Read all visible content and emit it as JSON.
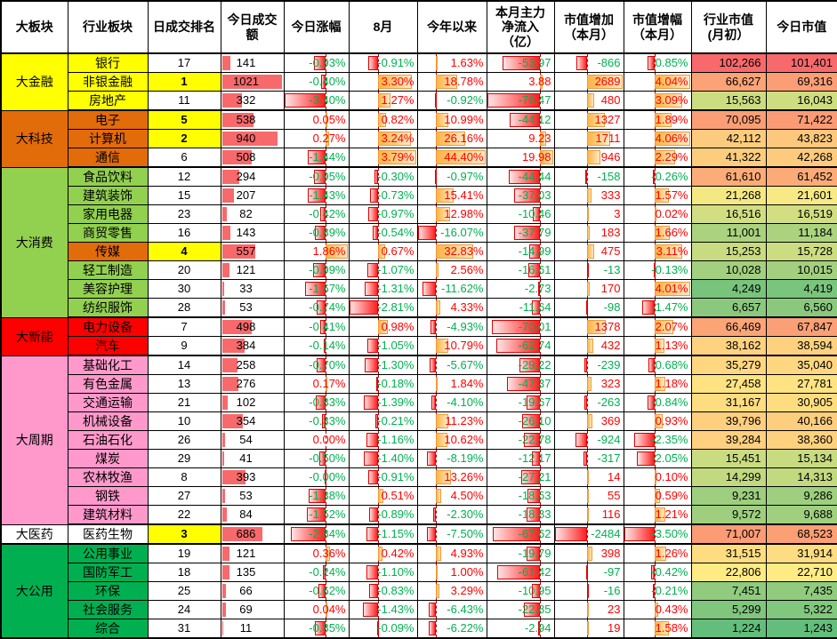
{
  "colors": {
    "positive_text": "#FF0000",
    "negative_text": "#00B050",
    "volume_bar": "#F8696B",
    "positive_bar_dark": "#FFB445",
    "positive_bar_light": "#FFEAC6",
    "negative_bar_dark": "#FF2020",
    "negative_bar_light": "#FFE4E4",
    "scale_low": "#63BE7B",
    "scale_mid": "#FFEB84",
    "scale_high": "#F8696B",
    "rank_highlight": "#FFFF00"
  },
  "chart_data": {
    "type": "table",
    "columns": [
      {
        "key": "group",
        "label": "大板块"
      },
      {
        "key": "industry",
        "label": "行业板块"
      },
      {
        "key": "rank",
        "label": "日成交排名"
      },
      {
        "key": "volume",
        "label": "今日成交\n额"
      },
      {
        "key": "today",
        "label": "今日涨幅"
      },
      {
        "key": "aug",
        "label": "8月"
      },
      {
        "key": "ytd",
        "label": "今年以来"
      },
      {
        "key": "inflow",
        "label": "本月主力\n净流入\n（亿）"
      },
      {
        "key": "mv_add",
        "label": "市值增加\n（本月）"
      },
      {
        "key": "mv_pct",
        "label": "市值增幅\n（本月）"
      },
      {
        "key": "mv_start",
        "label": "行业市值\n(月初）"
      },
      {
        "key": "mv_today",
        "label": "今日市值"
      }
    ],
    "groups": [
      {
        "name": "大金融",
        "color": "#FFFF00",
        "rows": [
          {
            "industry": "银行",
            "rank": "17",
            "rank_top": false,
            "volume": "141",
            "today": "-0.93%",
            "aug": "-0.91%",
            "ytd": "1.63%",
            "inflow": "-53.97",
            "mv_add": "-866",
            "mv_pct": "-0.85%",
            "mv_start": "102,266",
            "mv_today": "101,401"
          },
          {
            "industry": "非银金融",
            "rank": "1",
            "rank_top": true,
            "volume": "1021",
            "today": "-0.40%",
            "aug": "3.30%",
            "ytd": "18.78%",
            "inflow": "3.88",
            "mv_add": "2689",
            "mv_pct": "4.04%",
            "mv_start": "66,627",
            "mv_today": "69,316"
          },
          {
            "industry": "房地产",
            "rank": "11",
            "rank_top": false,
            "volume": "332",
            "today": "-3.40%",
            "aug": "1.27%",
            "ytd": "-0.92%",
            "inflow": "-76.47",
            "mv_add": "480",
            "mv_pct": "3.09%",
            "mv_start": "15,563",
            "mv_today": "16,043"
          }
        ]
      },
      {
        "name": "大科技",
        "color": "#E26B0A",
        "rows": [
          {
            "industry": "电子",
            "rank": "5",
            "rank_top": true,
            "volume": "538",
            "today": "0.05%",
            "aug": "0.82%",
            "ytd": "10.99%",
            "inflow": "-44.12",
            "mv_add": "1327",
            "mv_pct": "1.89%",
            "mv_start": "70,095",
            "mv_today": "71,422"
          },
          {
            "industry": "计算机",
            "rank": "2",
            "rank_top": true,
            "volume": "940",
            "today": "0.27%",
            "aug": "3.24%",
            "ytd": "26.16%",
            "inflow": "9.23",
            "mv_add": "1711",
            "mv_pct": "4.06%",
            "mv_start": "42,112",
            "mv_today": "43,823"
          },
          {
            "industry": "通信",
            "rank": "6",
            "rank_top": false,
            "volume": "508",
            "today": "-1.44%",
            "aug": "3.79%",
            "ytd": "44.40%",
            "inflow": "19.98",
            "mv_add": "946",
            "mv_pct": "2.29%",
            "mv_start": "41,322",
            "mv_today": "42,268"
          }
        ]
      },
      {
        "name": "大消费",
        "color": "#92D050",
        "rows": [
          {
            "industry": "食品饮料",
            "rank": "12",
            "rank_top": false,
            "volume": "294",
            "today": "-0.95%",
            "aug": "-0.30%",
            "ytd": "-0.97%",
            "inflow": "-44.44",
            "mv_add": "-158",
            "mv_pct": "-0.26%",
            "mv_start": "61,610",
            "mv_today": "61,452"
          },
          {
            "industry": "建筑装饰",
            "rank": "15",
            "rank_top": false,
            "volume": "207",
            "today": "-1.43%",
            "aug": "-0.73%",
            "ytd": "15.41%",
            "inflow": "-37.03",
            "mv_add": "333",
            "mv_pct": "1.57%",
            "mv_start": "21,268",
            "mv_today": "21,601"
          },
          {
            "industry": "家用电器",
            "rank": "23",
            "rank_top": false,
            "volume": "82",
            "today": "-0.42%",
            "aug": "-0.97%",
            "ytd": "12.98%",
            "inflow": "-10.46",
            "mv_add": "3",
            "mv_pct": "0.02%",
            "mv_start": "16,516",
            "mv_today": "16,519"
          },
          {
            "industry": "商贸零售",
            "rank": "16",
            "rank_top": false,
            "volume": "143",
            "today": "-0.89%",
            "aug": "-0.54%",
            "ytd": "-16.07%",
            "inflow": "-37.79",
            "mv_add": "183",
            "mv_pct": "1.66%",
            "mv_start": "11,001",
            "mv_today": "11,184"
          },
          {
            "industry": "传媒",
            "row_color": "#E26B0A",
            "rank": "4",
            "rank_top": true,
            "volume": "557",
            "today": "1.86%",
            "aug": "0.67%",
            "ytd": "32.83%",
            "inflow": "-14.99",
            "mv_add": "475",
            "mv_pct": "3.11%",
            "mv_start": "15,253",
            "mv_today": "15,728"
          },
          {
            "industry": "轻工制造",
            "rank": "20",
            "rank_top": false,
            "volume": "121",
            "today": "-0.99%",
            "aug": "-1.07%",
            "ytd": "2.56%",
            "inflow": "-16.61",
            "mv_add": "-13",
            "mv_pct": "-0.13%",
            "mv_start": "10,028",
            "mv_today": "10,015"
          },
          {
            "industry": "美容护理",
            "rank": "30",
            "rank_top": false,
            "volume": "33",
            "today": "-1.67%",
            "aug": "-1.31%",
            "ytd": "-11.62%",
            "inflow": "-2.73",
            "mv_add": "170",
            "mv_pct": "4.01%",
            "mv_start": "4,249",
            "mv_today": "4,419"
          },
          {
            "industry": "纺织服饰",
            "rank": "28",
            "rank_top": false,
            "volume": "53",
            "today": "-0.74%",
            "aug": "-2.81%",
            "ytd": "4.33%",
            "inflow": "-11.64",
            "mv_add": "-98",
            "mv_pct": "-1.47%",
            "mv_start": "6,657",
            "mv_today": "6,560"
          }
        ]
      },
      {
        "name": "大新能",
        "color": "#FF0000",
        "rows": [
          {
            "industry": "电力设备",
            "rank": "7",
            "rank_top": false,
            "volume": "498",
            "today": "-0.41%",
            "aug": "0.98%",
            "ytd": "-4.93%",
            "inflow": "-70.01",
            "mv_add": "1378",
            "mv_pct": "2.07%",
            "mv_start": "66,469",
            "mv_today": "67,847"
          },
          {
            "industry": "汽车",
            "rank": "9",
            "rank_top": false,
            "volume": "384",
            "today": "-0.14%",
            "aug": "-1.05%",
            "ytd": "10.79%",
            "inflow": "-62.74",
            "mv_add": "432",
            "mv_pct": "1.13%",
            "mv_start": "38,162",
            "mv_today": "38,594"
          }
        ]
      },
      {
        "name": "大周期",
        "color": "#FF99CC",
        "rows": [
          {
            "industry": "基础化工",
            "rank": "14",
            "rank_top": false,
            "volume": "258",
            "today": "-0.70%",
            "aug": "-1.30%",
            "ytd": "-5.67%",
            "inflow": "-29.22",
            "mv_add": "-239",
            "mv_pct": "-0.68%",
            "mv_start": "35,279",
            "mv_today": "35,040"
          },
          {
            "industry": "有色金属",
            "rank": "13",
            "rank_top": false,
            "volume": "276",
            "today": "0.17%",
            "aug": "-0.18%",
            "ytd": "1.84%",
            "inflow": "-47.37",
            "mv_add": "323",
            "mv_pct": "1.18%",
            "mv_start": "27,458",
            "mv_today": "27,781"
          },
          {
            "industry": "交通运输",
            "rank": "21",
            "rank_top": false,
            "volume": "102",
            "today": "-0.83%",
            "aug": "-1.39%",
            "ytd": "-4.10%",
            "inflow": "-19.67",
            "mv_add": "-263",
            "mv_pct": "-0.84%",
            "mv_start": "31,167",
            "mv_today": "30,905"
          },
          {
            "industry": "机械设备",
            "rank": "10",
            "rank_top": false,
            "volume": "354",
            "today": "-0.33%",
            "aug": "-0.21%",
            "ytd": "11.23%",
            "inflow": "-26.10",
            "mv_add": "369",
            "mv_pct": "0.93%",
            "mv_start": "39,796",
            "mv_today": "40,166"
          },
          {
            "industry": "石油石化",
            "rank": "26",
            "rank_top": false,
            "volume": "54",
            "today": "0.00%",
            "aug": "-1.16%",
            "ytd": "10.62%",
            "inflow": "-22.78",
            "mv_add": "-924",
            "mv_pct": "-2.35%",
            "mv_start": "39,284",
            "mv_today": "38,360"
          },
          {
            "industry": "煤炭",
            "rank": "29",
            "rank_top": false,
            "volume": "41",
            "today": "-0.50%",
            "aug": "-1.40%",
            "ytd": "-8.19%",
            "inflow": "-12.17",
            "mv_add": "-317",
            "mv_pct": "-2.05%",
            "mv_start": "15,451",
            "mv_today": "15,134"
          },
          {
            "industry": "农林牧渔",
            "rank": "8",
            "rank_top": false,
            "volume": "393",
            "today": "-0.00%",
            "aug": "-0.91%",
            "ytd": "13.26%",
            "inflow": "-27.21",
            "mv_add": "14",
            "mv_pct": "0.10%",
            "mv_start": "14,299",
            "mv_today": "14,313"
          },
          {
            "industry": "钢铁",
            "rank": "27",
            "rank_top": false,
            "volume": "53",
            "today": "-1.38%",
            "aug": "0.51%",
            "ytd": "4.50%",
            "inflow": "-18.53",
            "mv_add": "55",
            "mv_pct": "0.59%",
            "mv_start": "9,231",
            "mv_today": "9,286"
          },
          {
            "industry": "建筑材料",
            "rank": "22",
            "rank_top": false,
            "volume": "84",
            "today": "-1.52%",
            "aug": "-0.89%",
            "ytd": "-2.30%",
            "inflow": "-18.83",
            "mv_add": "116",
            "mv_pct": "1.21%",
            "mv_start": "9,572",
            "mv_today": "9,688"
          }
        ]
      },
      {
        "name": "大医药",
        "color": "#FFFFFF",
        "rows": [
          {
            "industry": "医药生物",
            "rank": "3",
            "rank_top": true,
            "volume": "686",
            "today": "-2.84%",
            "aug": "-1.15%",
            "ytd": "-7.50%",
            "inflow": "-67.62",
            "mv_add": "-2484",
            "mv_pct": "-3.50%",
            "mv_start": "71,007",
            "mv_today": "68,523"
          }
        ]
      },
      {
        "name": "大公用",
        "color": "#00B050",
        "rows": [
          {
            "industry": "公用事业",
            "rank": "19",
            "rank_top": false,
            "volume": "121",
            "today": "0.36%",
            "aug": "0.42%",
            "ytd": "4.93%",
            "inflow": "-19.79",
            "mv_add": "398",
            "mv_pct": "1.26%",
            "mv_start": "31,515",
            "mv_today": "31,914"
          },
          {
            "industry": "国防军工",
            "rank": "18",
            "rank_top": false,
            "volume": "135",
            "today": "-0.24%",
            "aug": "-1.10%",
            "ytd": "1.00%",
            "inflow": "-61.42",
            "mv_add": "-97",
            "mv_pct": "-0.42%",
            "mv_start": "22,806",
            "mv_today": "22,710"
          },
          {
            "industry": "环保",
            "rank": "25",
            "rank_top": false,
            "volume": "66",
            "today": "-0.62%",
            "aug": "-0.83%",
            "ytd": "3.29%",
            "inflow": "-10.95",
            "mv_add": "-16",
            "mv_pct": "-0.21%",
            "mv_start": "7,451",
            "mv_today": "7,435"
          },
          {
            "industry": "社会服务",
            "rank": "24",
            "rank_top": false,
            "volume": "69",
            "today": "0.04%",
            "aug": "-1.43%",
            "ytd": "-6.43%",
            "inflow": "-22.85",
            "mv_add": "23",
            "mv_pct": "0.43%",
            "mv_start": "5,299",
            "mv_today": "5,322"
          },
          {
            "industry": "综合",
            "rank": "31",
            "rank_top": false,
            "volume": "11",
            "today": "-0.85%",
            "aug": "-0.09%",
            "ytd": "-6.22%",
            "inflow": "-2.94",
            "mv_add": "19",
            "mv_pct": "1.58%",
            "mv_start": "1,224",
            "mv_today": "1,243"
          }
        ]
      }
    ]
  }
}
